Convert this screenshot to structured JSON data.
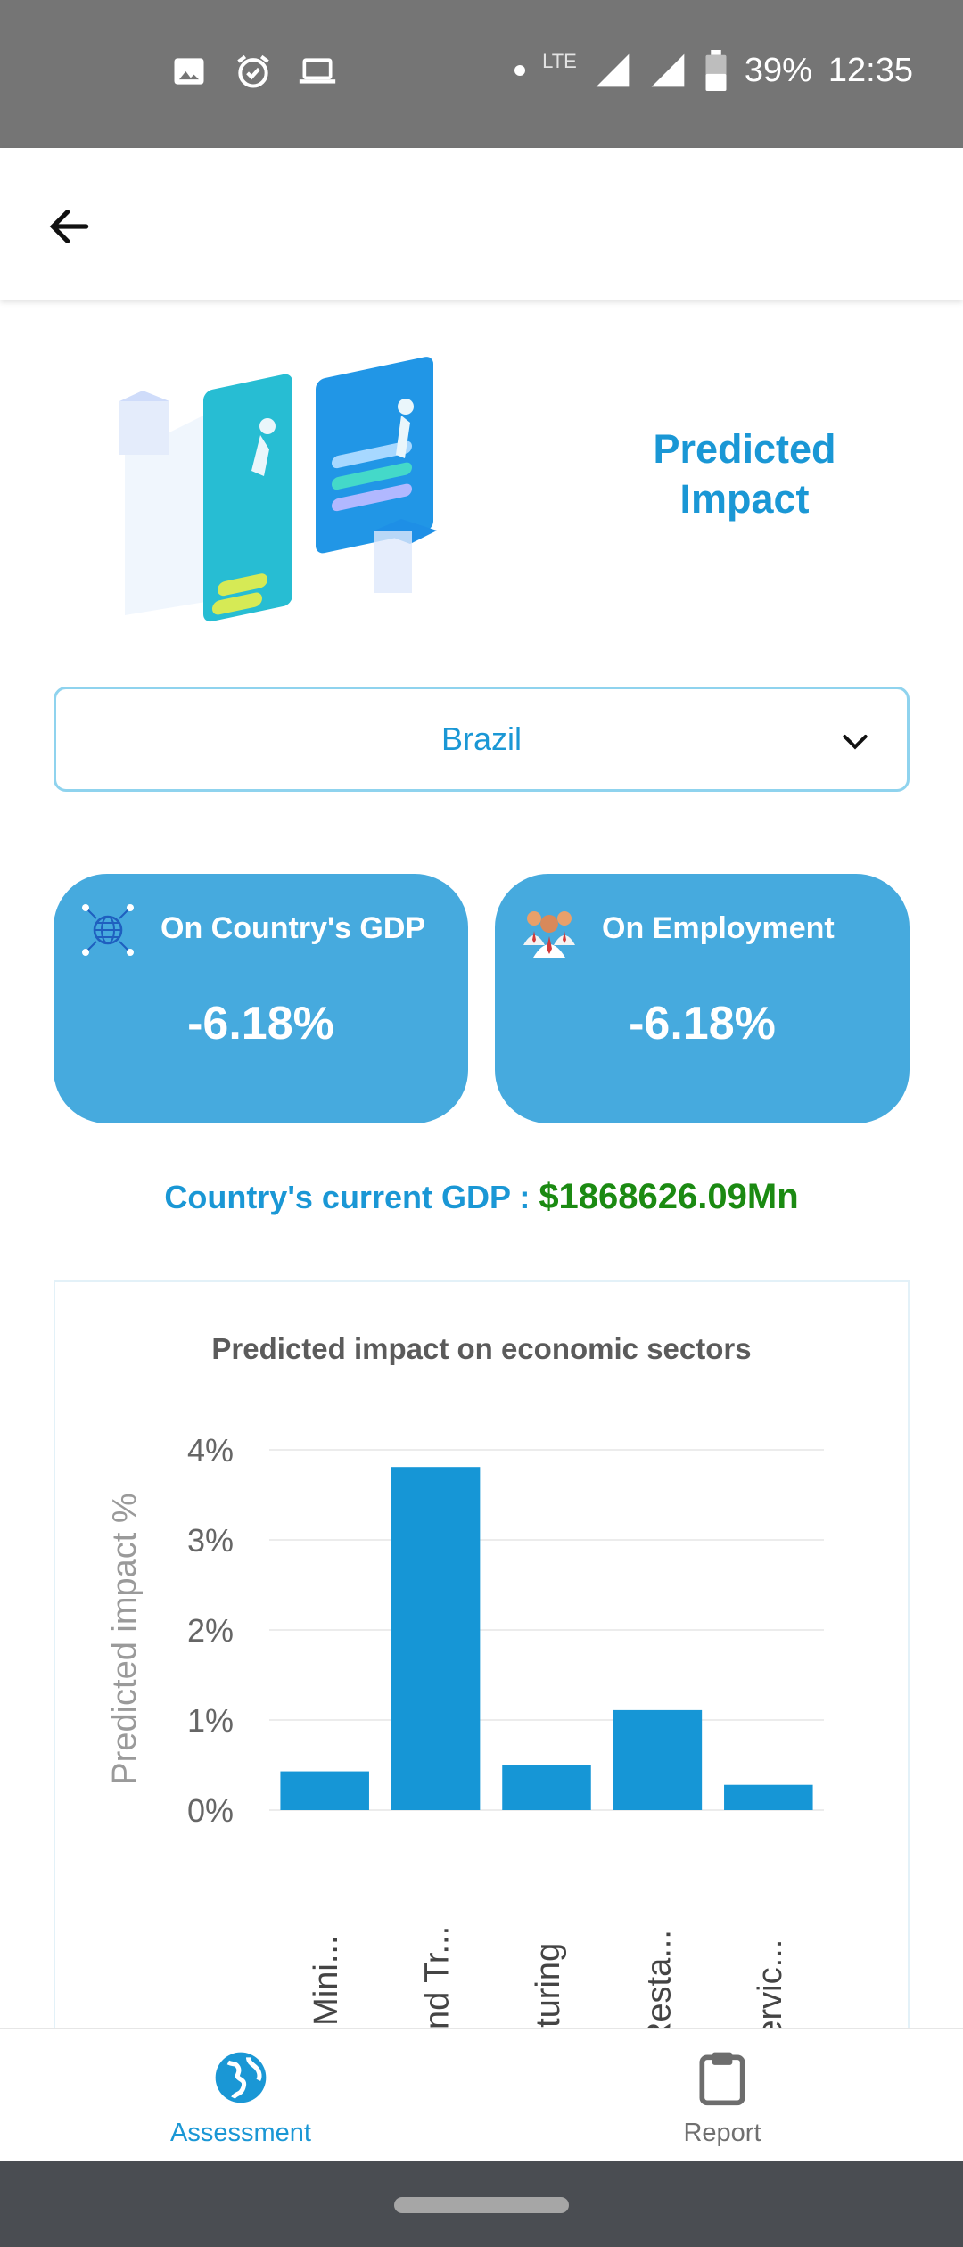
{
  "status_bar": {
    "network": "LTE",
    "battery": "39%",
    "time": "12:35",
    "left_icons": [
      "image-icon",
      "alarm-check-icon",
      "laptop-icon"
    ]
  },
  "app_bar": {
    "back_icon": "arrow-left-icon"
  },
  "hero": {
    "title": "Predicted Impact"
  },
  "country_select": {
    "selected": "Brazil"
  },
  "cards": {
    "gdp": {
      "label": "On Country's GDP",
      "value": "-6.18%",
      "icon": "globe-network-icon"
    },
    "employment": {
      "label": "On Employment",
      "value": "-6.18%",
      "icon": "people-group-icon"
    }
  },
  "gdp_line": {
    "label": "Country's current GDP : ",
    "value": "$1868626.09Mn"
  },
  "colors": {
    "accent": "#1a97d5",
    "card": "#46aade",
    "bar": "#1696d6",
    "gdp_value": "#1b8a12"
  },
  "chart_data": {
    "type": "bar",
    "title": "Predicted impact on economic sectors",
    "ylabel": "Predicted impact %",
    "xlabel": "",
    "ylim": [
      0,
      4
    ],
    "yticks": [
      "0%",
      "1%",
      "2%",
      "3%",
      "4%"
    ],
    "grid": true,
    "categories": [
      "ulture, Mini...",
      "ness and Tr...",
      "anufacturing",
      "l and Resta...",
      "port Servic..."
    ],
    "values": [
      0.43,
      3.81,
      0.5,
      1.11,
      0.28
    ]
  },
  "bottom_nav": {
    "items": [
      {
        "label": "Assessment",
        "icon": "globe-icon"
      },
      {
        "label": "Report",
        "icon": "clipboard-icon"
      }
    ]
  }
}
